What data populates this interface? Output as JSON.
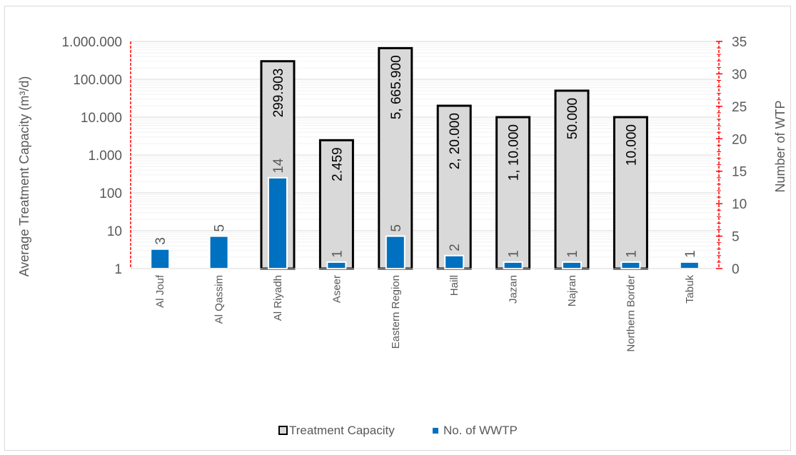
{
  "chart_data": {
    "type": "bar",
    "categories": [
      "Al Jouf",
      "Al Qassim",
      "Al Riyadh",
      "Aseer",
      "Eastern Region",
      "Haill",
      "Jazan",
      "Najran",
      "Northern Border",
      "Tabuk"
    ],
    "series": [
      {
        "name": "Treatment Capacity",
        "axis": "left",
        "scale": "log",
        "values": [
          null,
          null,
          299903,
          2459,
          665900,
          20000,
          10000,
          50000,
          10000,
          null
        ],
        "labels": [
          "",
          "",
          "299.903",
          "2.459",
          "5, 665.900",
          "2, 20.000",
          "1, 10.000",
          "50.000",
          "10.000",
          ""
        ],
        "color": "#d9d9d9",
        "stroke": "#000000"
      },
      {
        "name": "No. of WWTP",
        "axis": "right",
        "scale": "linear",
        "values": [
          3,
          5,
          14,
          1,
          5,
          2,
          1,
          1,
          1,
          1
        ],
        "labels": [
          "3",
          "5",
          "14",
          "1",
          "5",
          "2",
          "1",
          "1",
          "1",
          "1"
        ],
        "color": "#0070c0"
      }
    ],
    "ylabel": "Average Treatment Capacity (m³/d)",
    "y2label": "Number of WTP",
    "ylim": [
      1,
      1000000
    ],
    "y2lim": [
      0,
      35
    ],
    "yticks": [
      "1",
      "10",
      "100",
      "1.000",
      "10.000",
      "100.000",
      "1.000.000"
    ],
    "y2ticks": [
      "0",
      "5",
      "10",
      "15",
      "20",
      "25",
      "30",
      "35"
    ],
    "y2_axis_color": "#ff0000",
    "grid": true,
    "legend_position": "bottom"
  }
}
